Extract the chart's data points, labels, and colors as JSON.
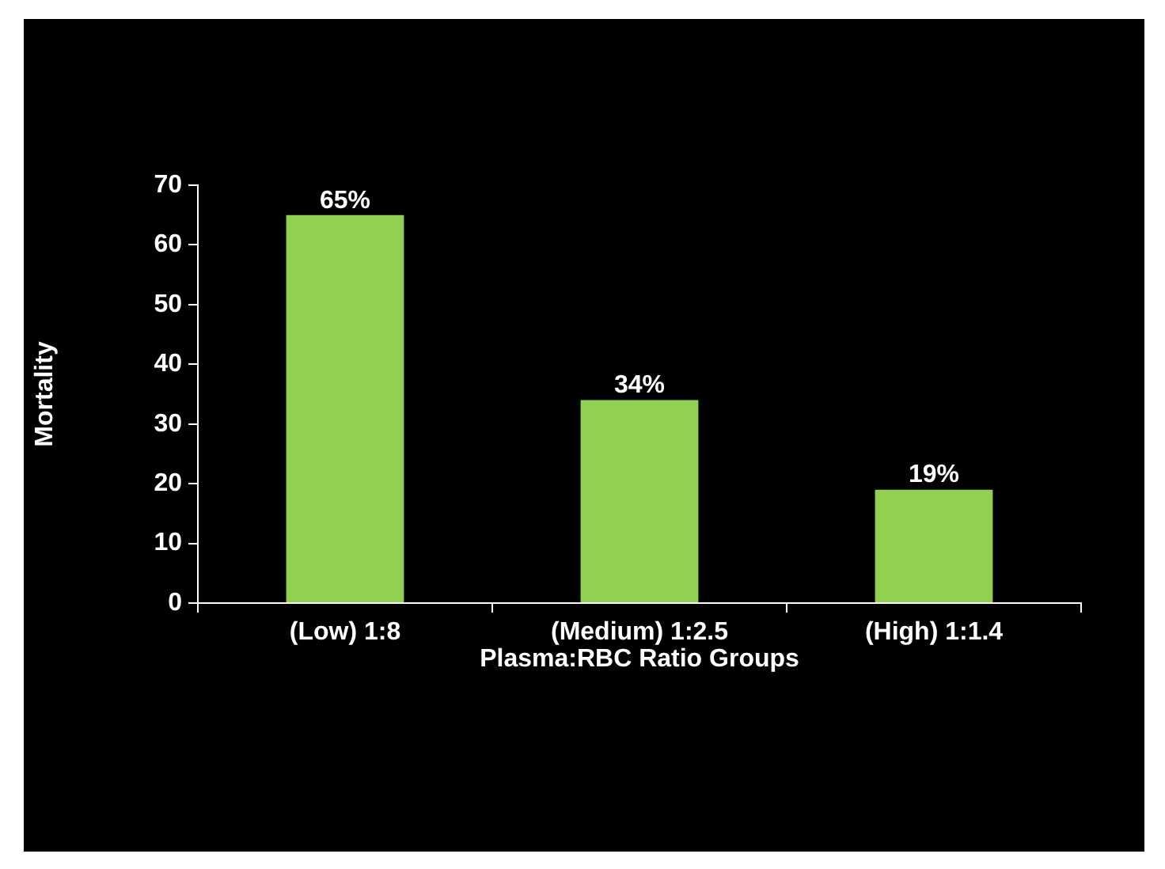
{
  "chart_data": {
    "type": "bar",
    "xlabel": "Plasma:RBC Ratio Groups",
    "ylabel": "Mortality",
    "categories": [
      "(Low) 1:8",
      "(Medium) 1:2.5",
      "(High) 1:1.4"
    ],
    "values": [
      65,
      34,
      19
    ],
    "value_labels": [
      "65%",
      "34%",
      "19%"
    ],
    "color": "#92d050",
    "ylim": [
      0,
      70
    ],
    "yticks": [
      0,
      10,
      20,
      30,
      40,
      50,
      60,
      70
    ],
    "grid": false,
    "legend": false
  }
}
